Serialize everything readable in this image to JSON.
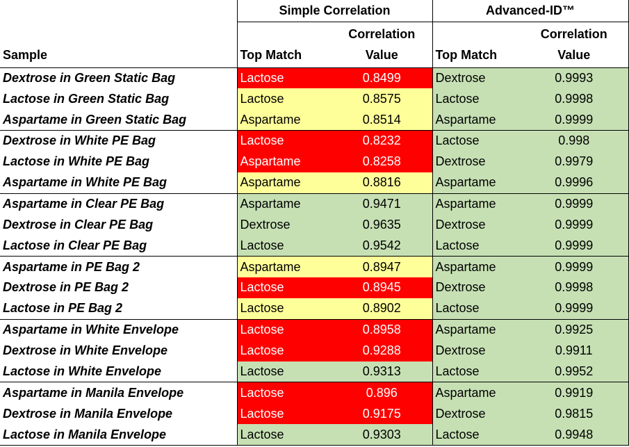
{
  "headers": {
    "sample": "Sample",
    "simple_group": "Simple Correlation",
    "advanced_group": "Advanced-ID™",
    "top_match": "Top Match",
    "corr_line1": "Correlation",
    "corr_line2": "Value"
  },
  "colors": {
    "red": "#ff0000",
    "yellow": "#ffff99",
    "green": "#c6e0b4"
  },
  "rows": [
    {
      "sample": "Dextrose in Green Static Bag",
      "simple_match": "Lactose",
      "simple_value": "0.8499",
      "simple_status": "red",
      "adv_match": "Dextrose",
      "adv_value": "0.9993"
    },
    {
      "sample": "Lactose in Green Static Bag",
      "simple_match": "Lactose",
      "simple_value": "0.8575",
      "simple_status": "yellow",
      "adv_match": "Lactose",
      "adv_value": "0.9998"
    },
    {
      "sample": "Aspartame in Green Static Bag",
      "simple_match": "Aspartame",
      "simple_value": "0.8514",
      "simple_status": "yellow",
      "adv_match": "Aspartame",
      "adv_value": "0.9999"
    },
    {
      "sample": "Dextrose in White PE Bag",
      "simple_match": "Lactose",
      "simple_value": "0.8232",
      "simple_status": "red",
      "adv_match": "Lactose",
      "adv_value": "0.998"
    },
    {
      "sample": "Lactose in White PE Bag",
      "simple_match": "Aspartame",
      "simple_value": "0.8258",
      "simple_status": "red",
      "adv_match": "Dextrose",
      "adv_value": "0.9979"
    },
    {
      "sample": "Aspartame in White PE Bag",
      "simple_match": "Aspartame",
      "simple_value": "0.8816",
      "simple_status": "yellow",
      "adv_match": "Aspartame",
      "adv_value": "0.9996"
    },
    {
      "sample": "Aspartame in Clear PE Bag",
      "simple_match": "Aspartame",
      "simple_value": "0.9471",
      "simple_status": "green",
      "adv_match": "Aspartame",
      "adv_value": "0.9999"
    },
    {
      "sample": "Dextrose in Clear PE Bag",
      "simple_match": "Dextrose",
      "simple_value": "0.9635",
      "simple_status": "green",
      "adv_match": "Dextrose",
      "adv_value": "0.9999"
    },
    {
      "sample": "Lactose in Clear PE Bag",
      "simple_match": "Lactose",
      "simple_value": "0.9542",
      "simple_status": "green",
      "adv_match": "Lactose",
      "adv_value": "0.9999"
    },
    {
      "sample": "Aspartame in PE Bag 2",
      "simple_match": "Aspartame",
      "simple_value": "0.8947",
      "simple_status": "yellow",
      "adv_match": "Aspartame",
      "adv_value": "0.9999"
    },
    {
      "sample": "Dextrose in PE Bag 2",
      "simple_match": "Lactose",
      "simple_value": "0.8945",
      "simple_status": "red",
      "adv_match": "Dextrose",
      "adv_value": "0.9998"
    },
    {
      "sample": "Lactose in PE Bag 2",
      "simple_match": "Lactose",
      "simple_value": "0.8902",
      "simple_status": "yellow",
      "adv_match": "Lactose",
      "adv_value": "0.9999"
    },
    {
      "sample": "Aspartame in White Envelope",
      "simple_match": "Lactose",
      "simple_value": "0.8958",
      "simple_status": "red",
      "adv_match": "Aspartame",
      "adv_value": "0.9925"
    },
    {
      "sample": "Dextrose in White Envelope",
      "simple_match": "Lactose",
      "simple_value": "0.9288",
      "simple_status": "red",
      "adv_match": "Dextrose",
      "adv_value": "0.9911"
    },
    {
      "sample": "Lactose in White Envelope",
      "simple_match": "Lactose",
      "simple_value": "0.9313",
      "simple_status": "green",
      "adv_match": "Lactose",
      "adv_value": "0.9952"
    },
    {
      "sample": "Aspartame in Manila Envelope",
      "simple_match": "Lactose",
      "simple_value": "0.896",
      "simple_status": "red",
      "adv_match": "Aspartame",
      "adv_value": "0.9919"
    },
    {
      "sample": "Dextrose in Manila Envelope",
      "simple_match": "Lactose",
      "simple_value": "0.9175",
      "simple_status": "red",
      "adv_match": "Dextrose",
      "adv_value": "0.9815"
    },
    {
      "sample": "Lactose in Manila Envelope",
      "simple_match": "Lactose",
      "simple_value": "0.9303",
      "simple_status": "green",
      "adv_match": "Lactose",
      "adv_value": "0.9948"
    }
  ]
}
